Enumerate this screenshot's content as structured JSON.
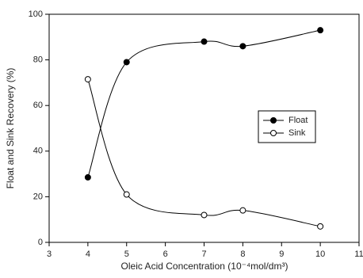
{
  "chart_data": {
    "type": "line",
    "x_label": "Oleic Acid Concentration (10⁻⁴mol/dm³)",
    "y_label": "Float and Sink Recovery (%)",
    "x": [
      4,
      5,
      7,
      8,
      10
    ],
    "series": [
      {
        "name": "Float",
        "color": "#000000",
        "marker": "filled",
        "values": [
          28.5,
          79,
          88,
          86,
          93
        ]
      },
      {
        "name": "Sink",
        "color": "#000000",
        "marker": "open",
        "values": [
          71.5,
          21,
          12,
          14,
          7
        ]
      }
    ],
    "xlim": [
      3,
      11
    ],
    "xticks": [
      3,
      4,
      5,
      6,
      7,
      8,
      9,
      10,
      11
    ],
    "ylim": [
      0,
      100
    ],
    "yticks": [
      0,
      20,
      40,
      60,
      80,
      100
    ],
    "legend": "right"
  }
}
